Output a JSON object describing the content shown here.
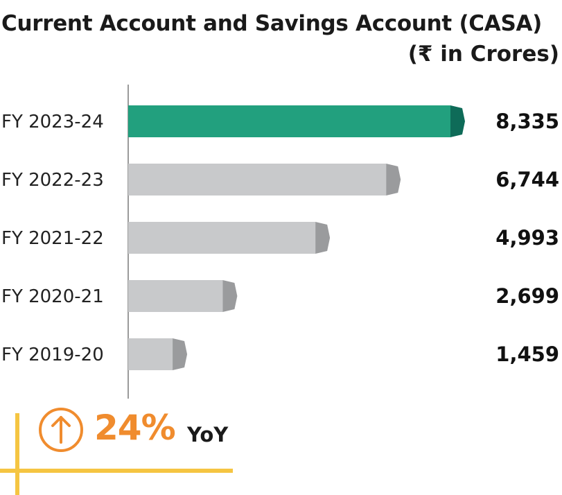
{
  "title": "Current Account and Savings Account (CASA)",
  "unit_label": "(₹ in Crores)",
  "growth": {
    "value": "24%",
    "label": "YoY",
    "icon": "arrow-up-circle-icon"
  },
  "colors": {
    "highlight": "#22a07e",
    "highlight_cap": "#0e6b58",
    "bar": "#c8c9cb",
    "bar_cap": "#9a9b9d",
    "accent": "#f08c2e",
    "guide": "#f5c542"
  },
  "chart_data": {
    "type": "bar",
    "orientation": "horizontal",
    "categories": [
      "FY 2023-24",
      "FY 2022-23",
      "FY 2021-22",
      "FY 2020-21",
      "FY 2019-20"
    ],
    "values": [
      8335,
      6744,
      4993,
      2699,
      1459
    ],
    "value_labels": [
      "8,335",
      "6,744",
      "4,993",
      "2,699",
      "1,459"
    ],
    "highlight_index": 0,
    "grid": false
  }
}
